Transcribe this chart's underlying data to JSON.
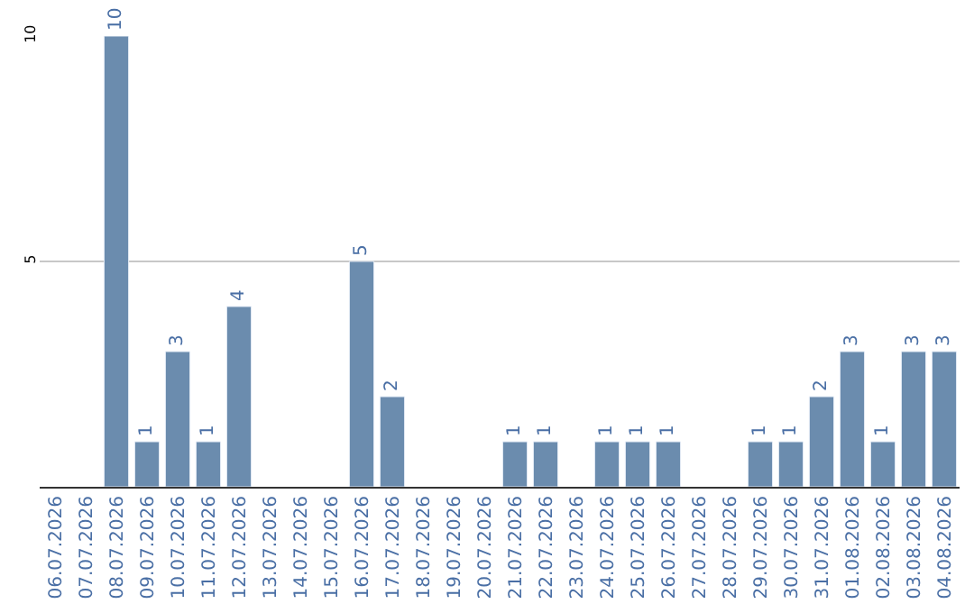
{
  "chart_data": {
    "type": "bar",
    "categories": [
      "06.07.2026",
      "07.07.2026",
      "08.07.2026",
      "09.07.2026",
      "10.07.2026",
      "11.07.2026",
      "12.07.2026",
      "13.07.2026",
      "14.07.2026",
      "15.07.2026",
      "16.07.2026",
      "17.07.2026",
      "18.07.2026",
      "19.07.2026",
      "20.07.2026",
      "21.07.2026",
      "22.07.2026",
      "23.07.2026",
      "24.07.2026",
      "25.07.2026",
      "26.07.2026",
      "27.07.2026",
      "28.07.2026",
      "29.07.2026",
      "30.07.2026",
      "31.07.2026",
      "01.08.2026",
      "02.08.2026",
      "03.08.2026",
      "04.08.2026"
    ],
    "values": [
      null,
      null,
      10,
      1,
      3,
      1,
      4,
      null,
      null,
      null,
      5,
      2,
      null,
      null,
      null,
      1,
      1,
      null,
      1,
      1,
      1,
      null,
      null,
      1,
      1,
      2,
      3,
      1,
      3,
      3
    ],
    "color": "#6b8cae",
    "ylim": [
      0,
      10
    ],
    "yticks": [
      5,
      10
    ],
    "grid": "y",
    "data_labels": true
  }
}
